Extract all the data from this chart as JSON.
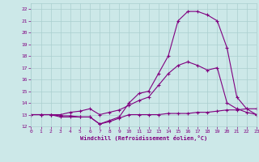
{
  "xlabel": "Windchill (Refroidissement éolien,°C)",
  "x": [
    0,
    1,
    2,
    3,
    4,
    5,
    6,
    7,
    8,
    9,
    10,
    11,
    12,
    13,
    14,
    15,
    16,
    17,
    18,
    19,
    20,
    21,
    22,
    23
  ],
  "line1": [
    13,
    13,
    13,
    12.8,
    12.8,
    12.8,
    12.8,
    12.2,
    12.5,
    12.8,
    14.0,
    14.8,
    15.0,
    16.5,
    18.0,
    21.0,
    21.8,
    21.8,
    21.5,
    21.0,
    18.7,
    14.5,
    13.5,
    13.0
  ],
  "line2": [
    13,
    13,
    13,
    13.0,
    13.2,
    13.3,
    13.5,
    13.0,
    13.2,
    13.4,
    13.8,
    14.2,
    14.5,
    15.5,
    16.5,
    17.2,
    17.5,
    17.2,
    16.8,
    17.0,
    14.0,
    13.5,
    13.2,
    13.0
  ],
  "line3": [
    13,
    13,
    13,
    12.9,
    12.9,
    12.8,
    12.8,
    12.2,
    12.4,
    12.7,
    13.0,
    13.0,
    13.0,
    13.0,
    13.1,
    13.1,
    13.1,
    13.2,
    13.2,
    13.3,
    13.4,
    13.4,
    13.5,
    13.5
  ],
  "line_color": "#800080",
  "bg_color": "#cce8e8",
  "grid_color": "#aacfcf",
  "text_color": "#800080",
  "ylim": [
    12,
    22.5
  ],
  "xlim": [
    0,
    23
  ],
  "yticks": [
    12,
    13,
    14,
    15,
    16,
    17,
    18,
    19,
    20,
    21,
    22
  ],
  "xticks": [
    0,
    1,
    2,
    3,
    4,
    5,
    6,
    7,
    8,
    9,
    10,
    11,
    12,
    13,
    14,
    15,
    16,
    17,
    18,
    19,
    20,
    21,
    22,
    23
  ]
}
